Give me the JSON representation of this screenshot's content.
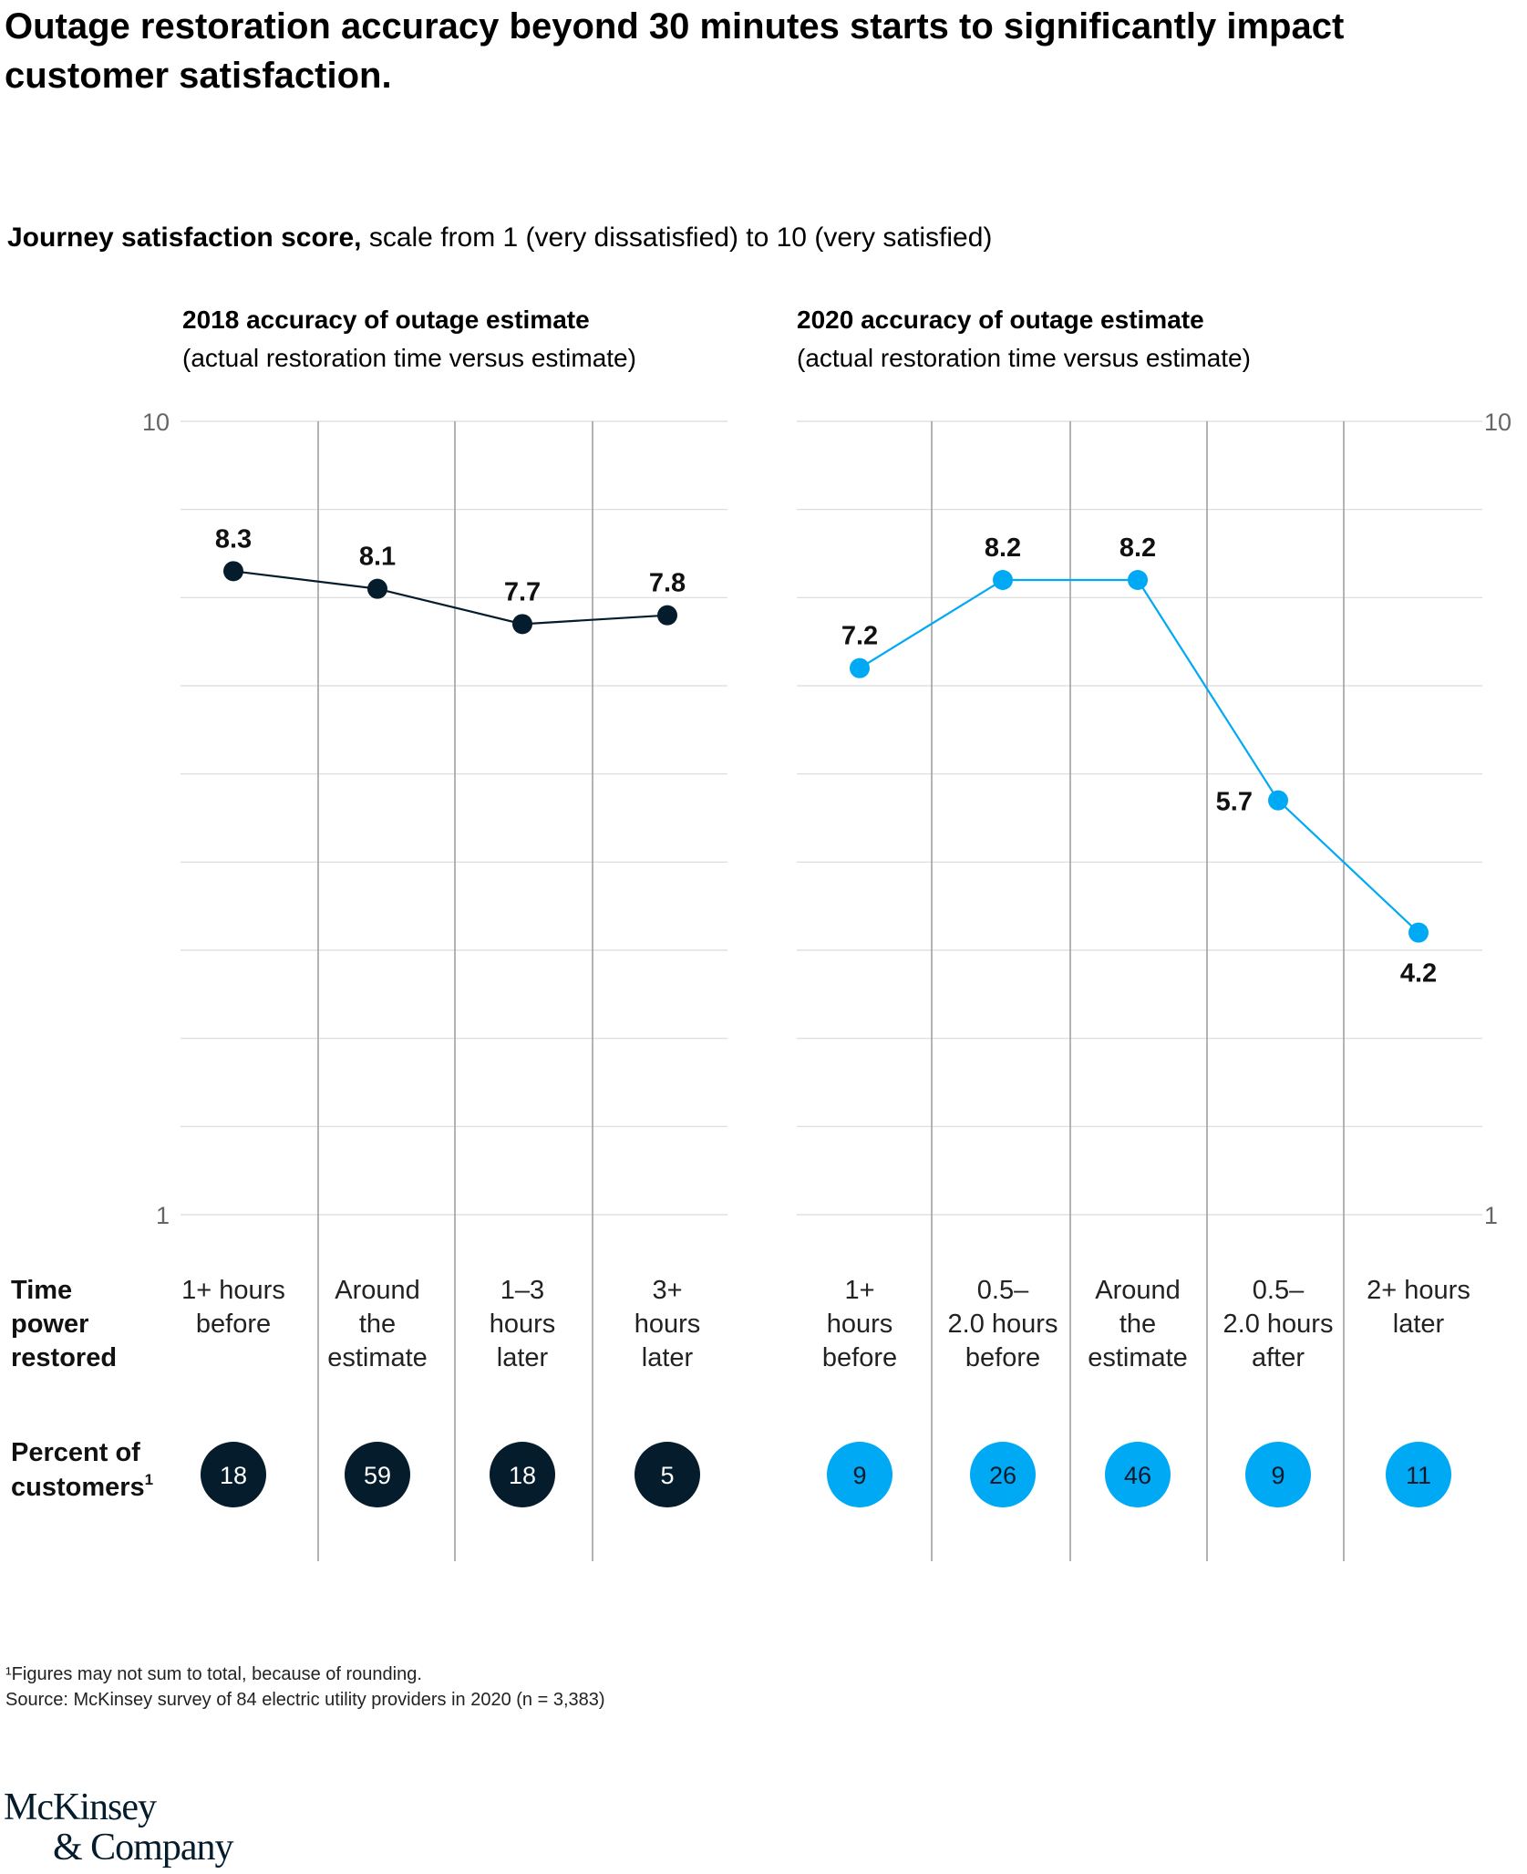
{
  "title": "Outage restoration accuracy beyond 30 minutes starts to significantly impact customer satisfaction.",
  "subtitle": {
    "bold": "Journey satisfaction score,",
    "normal": " scale from 1 (very dissatisfied) to 10 (very satisfied)"
  },
  "row_labels": {
    "time": [
      "Time",
      "power",
      "restored"
    ],
    "percent": [
      "Percent of",
      "customers"
    ],
    "percent_sup": "1"
  },
  "colors": {
    "series_2018": "#051c2c",
    "series_2020": "#00a9f4",
    "grid": "#d9d9d9",
    "divider": "#9a9a9a"
  },
  "chart_data": [
    {
      "type": "line",
      "title": "2018 accuracy of outage estimate",
      "subtitle": "(actual restoration time versus estimate)",
      "ylim": [
        1,
        10
      ],
      "y_tick_labels": [
        "1",
        "10"
      ],
      "y_axis_side": "left",
      "grid": true,
      "categories": [
        [
          "1+ hours",
          "before"
        ],
        [
          "Around",
          "the",
          "estimate"
        ],
        [
          "1–3",
          "hours",
          "later"
        ],
        [
          "3+",
          "hours",
          "later"
        ]
      ],
      "values": [
        8.3,
        8.1,
        7.7,
        7.8
      ],
      "value_labels": [
        "8.3",
        "8.1",
        "7.7",
        "7.8"
      ],
      "percent_of_customers": [
        18,
        59,
        18,
        5
      ]
    },
    {
      "type": "line",
      "title": "2020 accuracy of outage estimate",
      "subtitle": "(actual restoration time versus estimate)",
      "ylim": [
        1,
        10
      ],
      "y_tick_labels": [
        "1",
        "10"
      ],
      "y_axis_side": "right",
      "grid": true,
      "categories": [
        [
          "1+",
          "hours",
          "before"
        ],
        [
          "0.5–",
          "2.0 hours",
          "before"
        ],
        [
          "Around",
          "the",
          "estimate"
        ],
        [
          "0.5–",
          "2.0 hours",
          "after"
        ],
        [
          "2+ hours",
          "later"
        ]
      ],
      "values": [
        7.2,
        8.2,
        8.2,
        5.7,
        4.2
      ],
      "value_labels": [
        "7.2",
        "8.2",
        "8.2",
        "5.7",
        "4.2"
      ],
      "percent_of_customers": [
        9,
        26,
        46,
        9,
        11
      ]
    }
  ],
  "footnote": {
    "line1": "¹Figures may not sum to total, because of rounding.",
    "line2": " Source: McKinsey survey of 84 electric utility providers in 2020 (n = 3,383)"
  },
  "logo": {
    "line1": "McKinsey",
    "line2": "& Company"
  }
}
